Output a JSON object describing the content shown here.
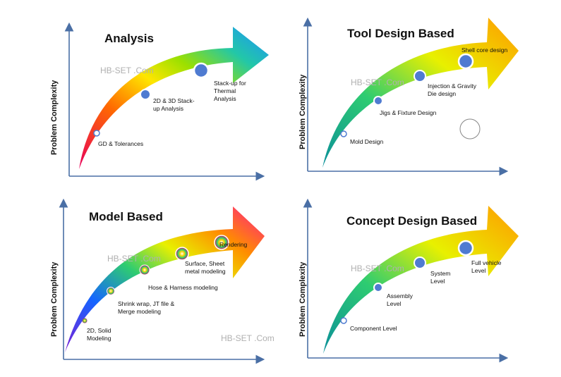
{
  "watermark": "HB-SET .Com",
  "panels": [
    {
      "title": "Analysis",
      "ylabel": "Problem Complexity",
      "watermark": "HB-SET .Com",
      "milestones": [
        {
          "lines": [
            "GD & Tolerances"
          ]
        },
        {
          "lines": [
            "2D & 3D Stack-",
            "up Analysis"
          ]
        },
        {
          "lines": [
            "Stack-up for",
            "Thermal",
            "Analysis"
          ]
        }
      ]
    },
    {
      "title": "Tool Design Based",
      "ylabel": "Problem Complexity",
      "watermark": "HB-SET .Com",
      "milestones": [
        {
          "lines": [
            "Mold Design"
          ]
        },
        {
          "lines": [
            "Jigs & Fixture Design"
          ]
        },
        {
          "lines": [
            "Injection & Gravity",
            "Die design"
          ]
        },
        {
          "lines": [
            "Shell core design"
          ]
        }
      ]
    },
    {
      "title": "Model Based",
      "ylabel": "Problem Complexity",
      "watermark": "HB-SET .Com",
      "milestones": [
        {
          "lines": [
            "2D, Solid",
            "Modeling"
          ]
        },
        {
          "lines": [
            "Shrink wrap, JT file &",
            "Merge modeling"
          ]
        },
        {
          "lines": [
            "Hose & Harness modeling"
          ]
        },
        {
          "lines": [
            "Surface,  Sheet",
            "metal modeling"
          ]
        },
        {
          "lines": [
            "Rendering"
          ]
        }
      ]
    },
    {
      "title": "Concept Design Based",
      "ylabel": "Problem Complexity",
      "watermark": "HB-SET .Com",
      "milestones": [
        {
          "lines": [
            "Component Level"
          ]
        },
        {
          "lines": [
            "Assembly",
            "Level"
          ]
        },
        {
          "lines": [
            "System",
            "Level"
          ]
        },
        {
          "lines": [
            "Full vehicle",
            "Level"
          ]
        }
      ]
    }
  ],
  "colors": {
    "axis": "#4a6fa5",
    "marker_fill": "#4f7bd1",
    "analysis_gradient": [
      "#e8005a",
      "#ff6a00",
      "#ffe600",
      "#9be000",
      "#22c7a8",
      "#1e90ff"
    ],
    "tool_gradient": [
      "#0b8f9a",
      "#2ecc71",
      "#e8f000",
      "#ff9a00"
    ],
    "model_gradient": [
      "#7b1fd6",
      "#1565ff",
      "#2ecc71",
      "#e8f000",
      "#ff8c00",
      "#ff1a8c"
    ],
    "concept_gradient": [
      "#0b8f9a",
      "#2ecc71",
      "#e8f000",
      "#ff9a00"
    ]
  }
}
